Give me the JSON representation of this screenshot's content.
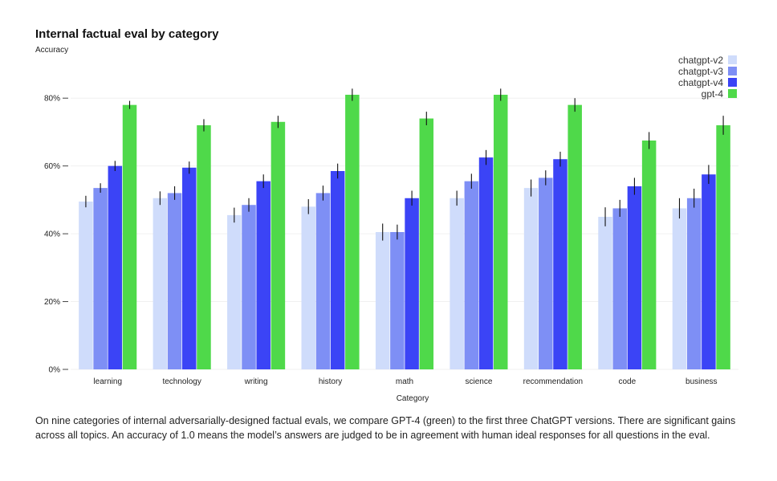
{
  "chart_data": {
    "type": "bar",
    "title": "Internal factual eval by category",
    "ylabel": "Accuracy",
    "xlabel": "Category",
    "ylim": [
      0,
      0.9
    ],
    "yticks": [
      0,
      0.2,
      0.4,
      0.6,
      0.8
    ],
    "ytick_labels": [
      "0%",
      "20%",
      "40%",
      "60%",
      "80%"
    ],
    "legend_position": "top-right",
    "grid": "horizontal",
    "categories": [
      "learning",
      "technology",
      "writing",
      "history",
      "math",
      "science",
      "recommendation",
      "code",
      "business"
    ],
    "series": [
      {
        "name": "chatgpt-v2",
        "color": "#cfdcfb",
        "values": [
          0.495,
          0.505,
          0.455,
          0.48,
          0.405,
          0.505,
          0.535,
          0.45,
          0.475
        ],
        "errors": [
          0.017,
          0.02,
          0.022,
          0.022,
          0.025,
          0.022,
          0.025,
          0.028,
          0.03
        ]
      },
      {
        "name": "chatgpt-v3",
        "color": "#7e8ff5",
        "values": [
          0.535,
          0.52,
          0.485,
          0.52,
          0.405,
          0.555,
          0.565,
          0.475,
          0.505
        ],
        "errors": [
          0.014,
          0.02,
          0.02,
          0.022,
          0.022,
          0.022,
          0.022,
          0.025,
          0.028
        ]
      },
      {
        "name": "chatgpt-v4",
        "color": "#3b44f6",
        "values": [
          0.6,
          0.595,
          0.555,
          0.585,
          0.505,
          0.625,
          0.62,
          0.54,
          0.575
        ],
        "errors": [
          0.015,
          0.018,
          0.02,
          0.022,
          0.022,
          0.022,
          0.022,
          0.025,
          0.028
        ]
      },
      {
        "name": "gpt-4",
        "color": "#4fd94a",
        "values": [
          0.78,
          0.72,
          0.73,
          0.81,
          0.74,
          0.81,
          0.78,
          0.675,
          0.72
        ],
        "errors": [
          0.012,
          0.018,
          0.018,
          0.018,
          0.02,
          0.018,
          0.02,
          0.025,
          0.028
        ]
      }
    ]
  },
  "caption": "On nine categories of internal adversarially-designed factual evals, we compare GPT-4 (green) to the first three ChatGPT versions. There are significant gains across all topics. An accuracy of 1.0 means the model’s answers are judged to be in agreement with human ideal responses for all questions in the eval."
}
